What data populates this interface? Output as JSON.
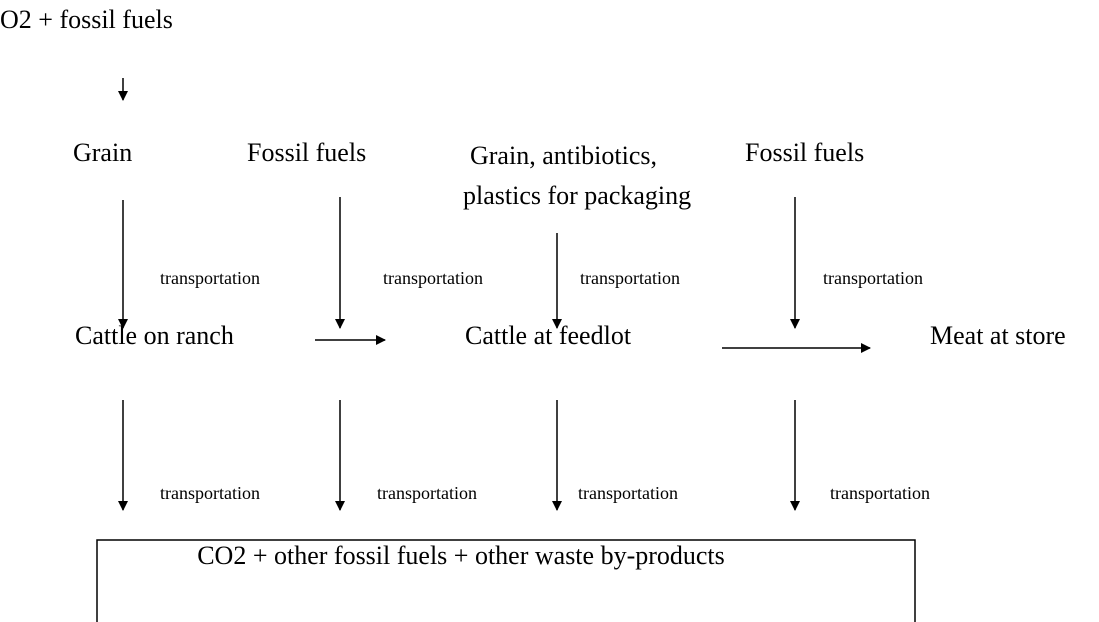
{
  "nodes": [
    {
      "label": "O2 + fossil fuels"
    },
    {
      "label": "Grain"
    },
    {
      "label": "Fossil fuels"
    },
    {
      "lines": [
        "Grain, antibiotics,",
        "plastics for packaging"
      ]
    },
    {
      "label": "Fossil fuels"
    },
    {
      "label": "Cattle on ranch"
    },
    {
      "label": "Cattle at feedlot"
    },
    {
      "label": "Meat at store"
    },
    {
      "label": "CO2 + other fossil fuels + other waste by-products"
    }
  ],
  "edge_labels": {
    "upper": [
      "transportation",
      "transportation",
      "transportation",
      "transportation"
    ],
    "lower": [
      "transportation",
      "transportation",
      "transportation",
      "transportation"
    ]
  }
}
